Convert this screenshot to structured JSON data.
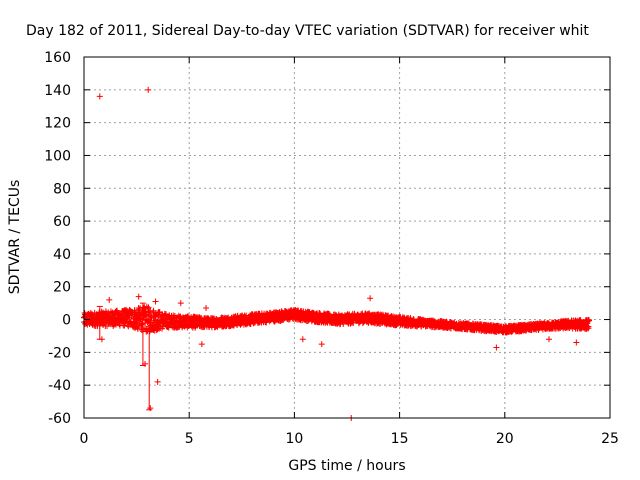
{
  "chart_data": {
    "type": "scatter",
    "title": "Day 182 of 2011, Sidereal Day-to-day VTEC variation (SDTVAR) for receiver whit",
    "xlabel": "GPS time / hours",
    "ylabel": "SDTVAR / TECUs",
    "xlim": [
      0,
      25
    ],
    "ylim": [
      -60,
      160
    ],
    "grid": true,
    "marker": "+",
    "series_color": "#ff0000",
    "x_ticks": [
      0,
      5,
      10,
      15,
      20,
      25
    ],
    "x_tick_labels": [
      "0",
      "5",
      "10",
      "15",
      "20",
      "25"
    ],
    "y_ticks": [
      -60,
      -40,
      -20,
      0,
      20,
      40,
      60,
      80,
      100,
      120,
      140,
      160
    ],
    "y_tick_labels": [
      "-60",
      "-40",
      "-20",
      "0",
      "20",
      "40",
      "60",
      "80",
      "100",
      "120",
      "140",
      "160"
    ],
    "outliers": [
      {
        "x": 0.75,
        "y": 136
      },
      {
        "x": 3.05,
        "y": 140
      },
      {
        "x": 3.5,
        "y": -38
      },
      {
        "x": 3.15,
        "y": -54
      },
      {
        "x": 2.9,
        "y": -27
      },
      {
        "x": 2.6,
        "y": 14
      },
      {
        "x": 12.7,
        "y": -60
      },
      {
        "x": 13.6,
        "y": 13
      },
      {
        "x": 19.6,
        "y": -17
      },
      {
        "x": 22.1,
        "y": -12
      },
      {
        "x": 1.2,
        "y": 12
      },
      {
        "x": 4.6,
        "y": 10
      },
      {
        "x": 5.8,
        "y": 7
      },
      {
        "x": 5.6,
        "y": -15
      },
      {
        "x": 11.3,
        "y": -15
      },
      {
        "x": 0.85,
        "y": -12
      },
      {
        "x": 3.4,
        "y": 11
      },
      {
        "x": 10.4,
        "y": -12
      },
      {
        "x": 23.4,
        "y": -14
      }
    ],
    "band": {
      "x_range": [
        0,
        24
      ],
      "center_trend": [
        [
          0,
          0
        ],
        [
          2,
          1
        ],
        [
          4,
          -1
        ],
        [
          6,
          -2
        ],
        [
          7,
          -1
        ],
        [
          10,
          3
        ],
        [
          12,
          0
        ],
        [
          13.5,
          1
        ],
        [
          15,
          -1
        ],
        [
          17,
          -3
        ],
        [
          18,
          -4
        ],
        [
          19,
          -5
        ],
        [
          20,
          -6
        ],
        [
          21,
          -5
        ],
        [
          22,
          -4
        ],
        [
          23,
          -3
        ],
        [
          24,
          -3
        ]
      ],
      "spread_trend": [
        [
          0,
          4
        ],
        [
          2,
          5
        ],
        [
          3,
          8
        ],
        [
          4,
          4
        ],
        [
          6,
          3
        ],
        [
          7,
          3
        ],
        [
          10,
          3
        ],
        [
          12,
          3
        ],
        [
          14,
          3
        ],
        [
          17,
          2
        ],
        [
          20,
          2
        ],
        [
          22,
          2
        ],
        [
          24,
          3
        ]
      ],
      "error_bars": [
        {
          "x": 3.1,
          "y": -15,
          "low": -55,
          "high": 0
        },
        {
          "x": 0.75,
          "y": 0,
          "low": -12,
          "high": 8
        },
        {
          "x": 2.8,
          "y": -8,
          "low": -28,
          "high": 10
        }
      ]
    }
  }
}
